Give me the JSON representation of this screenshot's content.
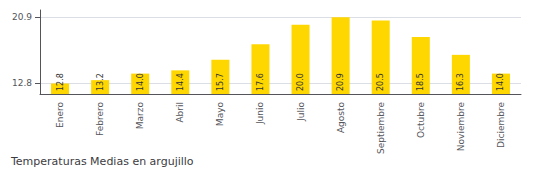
{
  "chart_data": {
    "type": "bar",
    "title": "Temperaturas Medias en argujillo",
    "categories": [
      "Enero",
      "Febrero",
      "Marzo",
      "Abril",
      "Mayo",
      "Junio",
      "Julio",
      "Agosto",
      "Septiembre",
      "Octubre",
      "Noviembre",
      "Diciembre"
    ],
    "values": [
      12.8,
      13.2,
      14.0,
      14.4,
      15.7,
      17.6,
      20.0,
      20.9,
      20.5,
      18.5,
      16.3,
      14.0
    ],
    "value_labels": [
      "12.8",
      "13.2",
      "14.0",
      "14.4",
      "15.7",
      "17.6",
      "20.0",
      "20.9",
      "20.5",
      "18.5",
      "16.3",
      "14.0"
    ],
    "data_labels": true,
    "color": "#FFD700",
    "ylim": [
      11.5,
      21.8
    ],
    "yticks": [
      12.8,
      20.9
    ],
    "grid": true
  }
}
